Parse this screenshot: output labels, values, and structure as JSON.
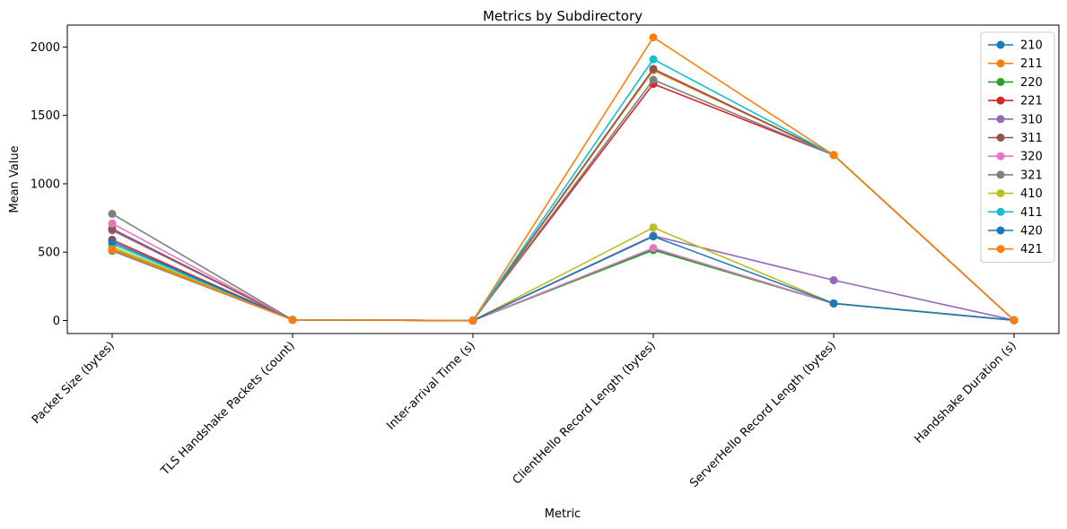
{
  "chart_data": {
    "type": "line",
    "title": "Metrics by Subdirectory",
    "xlabel": "Metric",
    "ylabel": "Mean Value",
    "categories": [
      "Packet Size (bytes)",
      "TLS Handshake Packets (count)",
      "Inter-arrival Time (s)",
      "ClientHello Record Length (bytes)",
      "ServerHello Record Length (bytes)",
      "Handshake Duration (s)"
    ],
    "ylim": [
      -95,
      2160
    ],
    "yticks": [
      0,
      500,
      1000,
      1500,
      2000
    ],
    "grid": false,
    "legend_position": "top-right",
    "series": [
      {
        "name": "210",
        "color": "#1f77b4",
        "values": [
          510,
          5,
          0,
          520,
          125,
          2
        ]
      },
      {
        "name": "211",
        "color": "#ff7f0e",
        "values": [
          515,
          5,
          0,
          1830,
          1210,
          2
        ]
      },
      {
        "name": "220",
        "color": "#2ca02c",
        "values": [
          525,
          5,
          0,
          515,
          125,
          2
        ]
      },
      {
        "name": "221",
        "color": "#d62728",
        "values": [
          590,
          5,
          0,
          1730,
          1210,
          2
        ]
      },
      {
        "name": "310",
        "color": "#9467bd",
        "values": [
          660,
          5,
          0,
          620,
          295,
          3
        ]
      },
      {
        "name": "311",
        "color": "#8c564b",
        "values": [
          670,
          5,
          0,
          1840,
          1210,
          2
        ]
      },
      {
        "name": "320",
        "color": "#e377c2",
        "values": [
          710,
          5,
          0,
          530,
          125,
          2
        ]
      },
      {
        "name": "321",
        "color": "#7f7f7f",
        "values": [
          780,
          5,
          0,
          1760,
          1210,
          2
        ]
      },
      {
        "name": "410",
        "color": "#bcbd22",
        "values": [
          540,
          5,
          0,
          680,
          125,
          2
        ]
      },
      {
        "name": "411",
        "color": "#17becf",
        "values": [
          560,
          5,
          0,
          1910,
          1210,
          2
        ]
      },
      {
        "name": "420",
        "color": "#1f77b4",
        "values": [
          575,
          5,
          0,
          615,
          125,
          2
        ]
      },
      {
        "name": "421",
        "color": "#ff7f0e",
        "values": [
          520,
          5,
          0,
          2070,
          1210,
          2
        ]
      }
    ]
  }
}
